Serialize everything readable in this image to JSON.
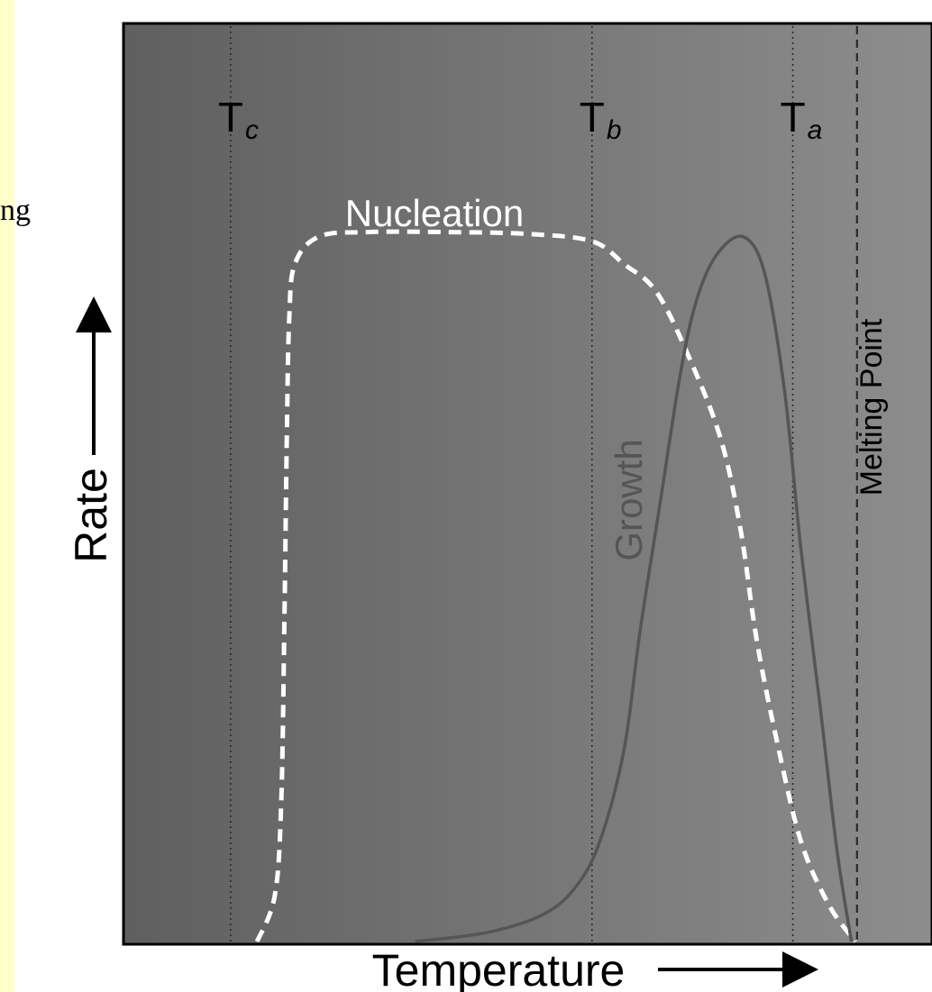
{
  "page": {
    "side_text_fragment": "ng"
  },
  "chart_data": {
    "type": "line",
    "title": "",
    "xlabel": "Temperature",
    "ylabel": "Rate",
    "x_range": [
      0,
      100
    ],
    "y_range": [
      0,
      100
    ],
    "colors": {
      "plot_bg_dark": "#5f5f5f",
      "plot_bg_light": "#8d8d8d",
      "nucleation": "#ffffff",
      "growth": "#555555",
      "reference_lines": "#2a2a2a",
      "text": "#000000",
      "nucleation_label": "#ffffff",
      "growth_label": "#555555"
    },
    "reference_lines": [
      {
        "label_main": "T",
        "label_sub": "c",
        "x": 13.0,
        "style": "dotted"
      },
      {
        "label_main": "T",
        "label_sub": "b",
        "x": 58.0,
        "style": "dotted"
      },
      {
        "label_main": "T",
        "label_sub": "a",
        "x": 83.0,
        "style": "dotted"
      },
      {
        "label": "Melting Point",
        "x": 91.0,
        "style": "dashed"
      }
    ],
    "series": [
      {
        "name": "Nucleation",
        "style": "dashed",
        "points": [
          [
            16.3,
            0
          ],
          [
            18.5,
            5
          ],
          [
            19.3,
            15
          ],
          [
            19.7,
            35
          ],
          [
            20.0,
            55
          ],
          [
            20.3,
            68
          ],
          [
            21.0,
            74
          ],
          [
            24.0,
            77
          ],
          [
            30.0,
            77.5
          ],
          [
            40.0,
            77.5
          ],
          [
            50.0,
            77.3
          ],
          [
            58.0,
            76.5
          ],
          [
            62.0,
            74
          ],
          [
            66.0,
            71
          ],
          [
            70.0,
            64
          ],
          [
            74.0,
            55
          ],
          [
            76.5,
            45
          ],
          [
            78.5,
            33
          ],
          [
            81.0,
            22
          ],
          [
            84.0,
            11
          ],
          [
            87.5,
            4
          ],
          [
            90.8,
            0
          ]
        ]
      },
      {
        "name": "Growth",
        "style": "solid",
        "points": [
          [
            36.0,
            0
          ],
          [
            45.0,
            1
          ],
          [
            52.0,
            3
          ],
          [
            56.0,
            6
          ],
          [
            59.0,
            11
          ],
          [
            62.0,
            21
          ],
          [
            64.0,
            34
          ],
          [
            66.5,
            48
          ],
          [
            69.0,
            62
          ],
          [
            71.0,
            70
          ],
          [
            73.5,
            75
          ],
          [
            76.8,
            77
          ],
          [
            79.5,
            73
          ],
          [
            82.0,
            60
          ],
          [
            84.0,
            43
          ],
          [
            86.5,
            25
          ],
          [
            88.5,
            10
          ],
          [
            90.3,
            0
          ]
        ]
      }
    ]
  }
}
